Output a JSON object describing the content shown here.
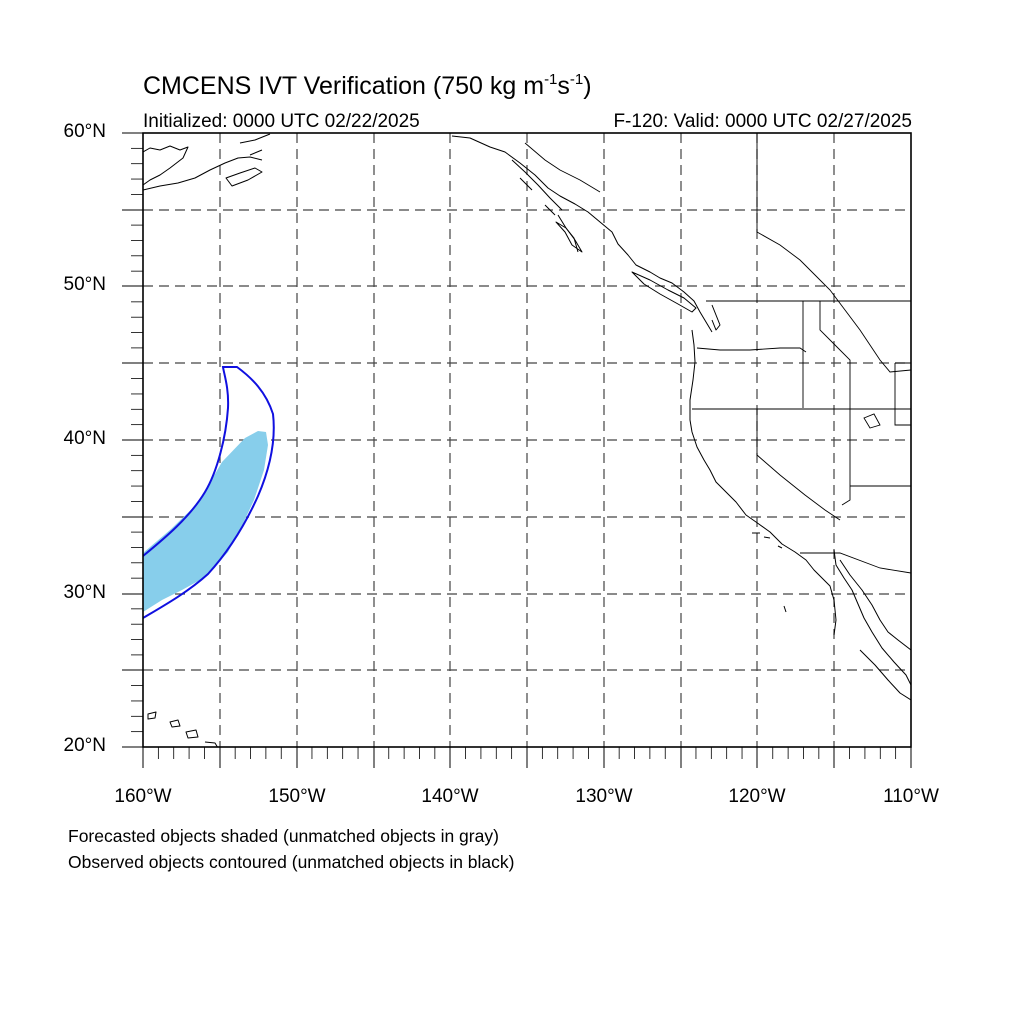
{
  "title": {
    "main": "CMCENS IVT Verification (750 kg m",
    "sup1": "-1",
    "mid": "s",
    "sup2": "-1",
    "end": ")"
  },
  "initialized": "Initialized: 0000 UTC 02/22/2025",
  "valid": "F-120: Valid: 0000 UTC 02/27/2025",
  "lat_labels": [
    "60°N",
    "50°N",
    "40°N",
    "30°N",
    "20°N"
  ],
  "lon_labels": [
    "160°W",
    "150°W",
    "140°W",
    "130°W",
    "120°W",
    "110°W"
  ],
  "notes": [
    "Forecasted objects shaded (unmatched objects in gray)",
    "Observed objects contoured (unmatched objects in black)"
  ],
  "map": {
    "lon_range": [
      -160,
      -110
    ],
    "lat_range": [
      20,
      60
    ],
    "gridline_spacing_deg": 5,
    "forecast_object_color": "#87ceeb",
    "observed_contour_color": "#1010e0",
    "coast_color": "#000000"
  }
}
